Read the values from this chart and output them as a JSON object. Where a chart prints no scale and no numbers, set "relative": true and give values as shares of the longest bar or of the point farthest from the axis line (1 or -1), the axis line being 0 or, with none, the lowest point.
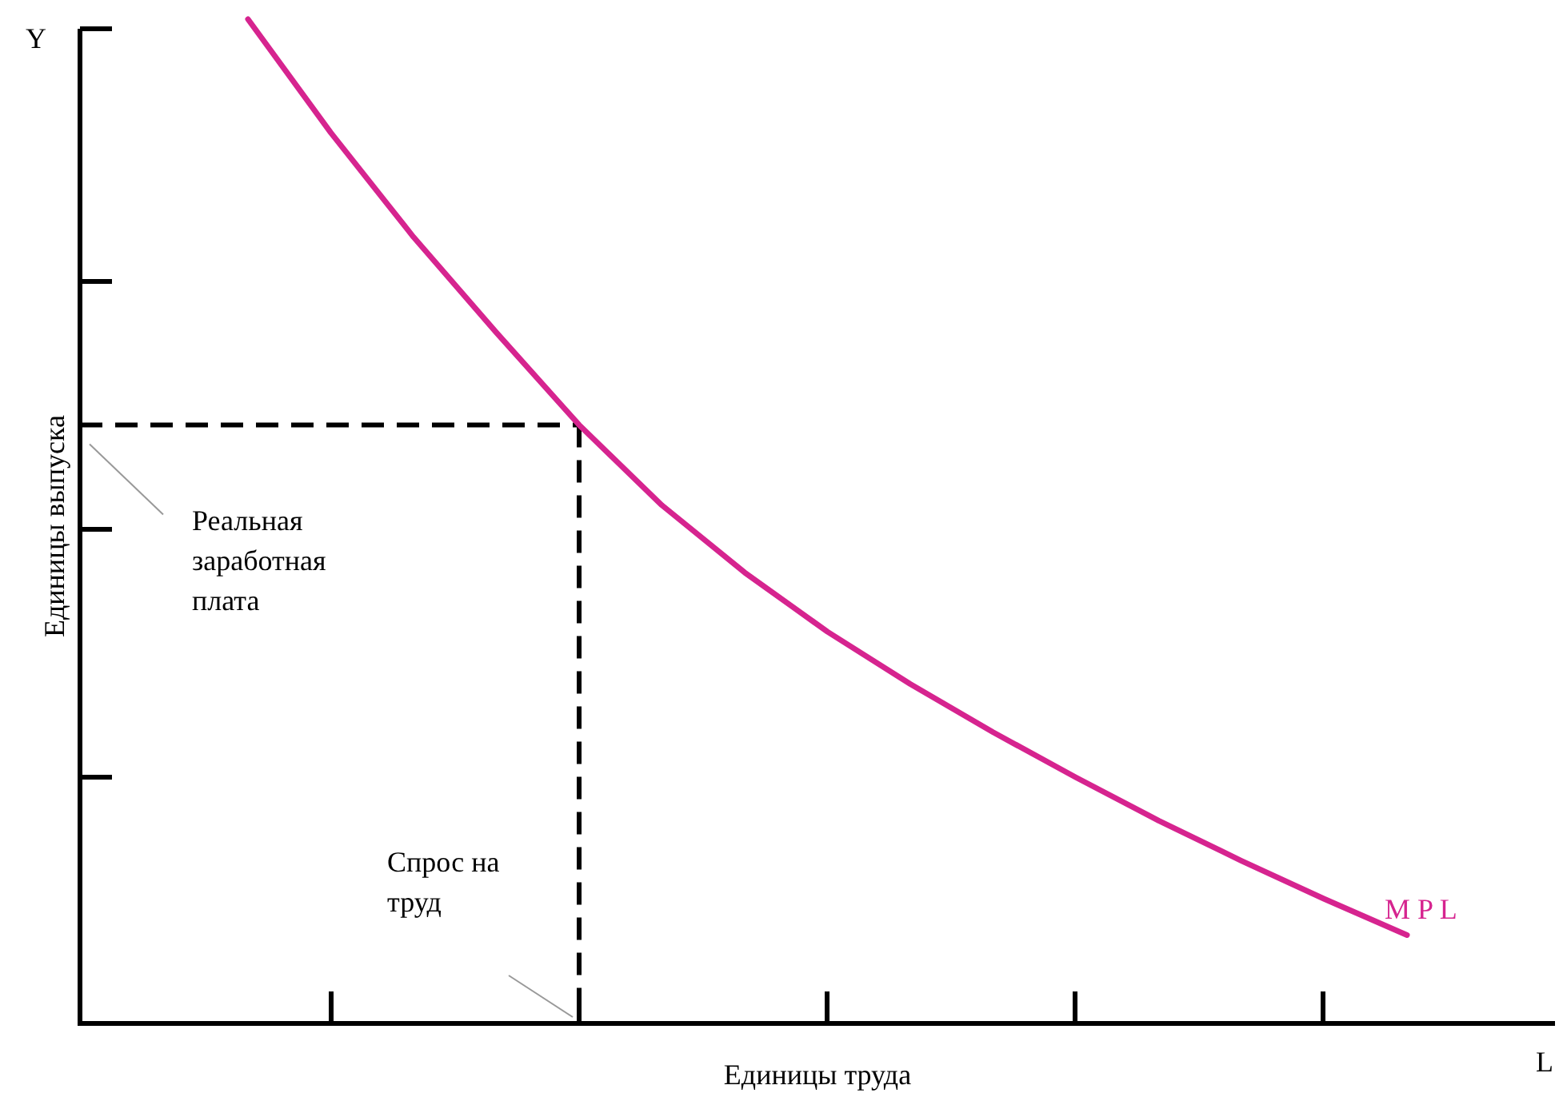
{
  "chart_data": {
    "type": "line",
    "relative": true,
    "xlabel": "Единицы труда",
    "ylabel": "Единицы выпуска",
    "annotations": [
      "Y",
      "L",
      "Спрос на труд"
    ],
    "categories": [
      null,
      null,
      null,
      null,
      null,
      null,
      null,
      null,
      null,
      null,
      null,
      null,
      null,
      null,
      null
    ],
    "series": [
      {
        "name": "M P L",
        "color": "#d6248f",
        "values": [
          1,
          0.887,
          0.783,
          0.688,
          0.596,
          0.516,
          0.449,
          0.39,
          0.338,
          0.29,
          0.245,
          0.202,
          0.162,
          0.124,
          0.088
        ]
      }
    ],
    "ref_lines": [
      {
        "axis": "y",
        "value": 0.596,
        "label": "Реальная заработная плата",
        "color": "#000000",
        "line_style": "dashed"
      }
    ]
  }
}
